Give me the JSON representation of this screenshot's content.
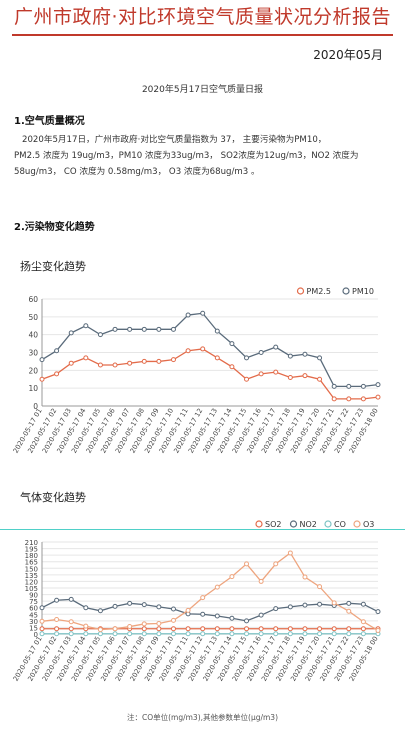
{
  "report": {
    "title": "广州市政府·对比环境空气质量状况分析报告",
    "date": "2020年05月",
    "subtitle": "2020年5月17日空气质量日报"
  },
  "section1": {
    "heading": "1.空气质量概况",
    "line1": "2020年5月17日，广州市政府·对比空气质量指数为 37， 主要污染物为PM10，",
    "line2": "PM2.5 浓度为 19ug/m3，PM10 浓度为33ug/m3， SO2浓度为12ug/m3，NO2 浓度为",
    "line3": "58ug/m3， CO 浓度为 0.58mg/m3， O3 浓度为68ug/m3 。"
  },
  "section2": {
    "heading": "2.污染物变化趋势"
  },
  "charts": {
    "dust_title": "扬尘变化趋势",
    "gas_title": "气体变化趋势",
    "footnote": "注：CO单位(mg/m3),其他参数单位(μg/m3)"
  },
  "colors": {
    "pm25": "#e36b4a",
    "pm10": "#5a6b7b",
    "so2": "#e36b4a",
    "no2": "#5a6b7b",
    "co": "#7ec3c4",
    "o3": "#eea57f"
  },
  "chart_data": [
    {
      "type": "line",
      "x": [
        "2020-05-17 01",
        "2020-05-17 02",
        "2020-05-17 03",
        "2020-05-17 04",
        "2020-05-17 05",
        "2020-05-17 06",
        "2020-05-17 07",
        "2020-05-17 08",
        "2020-05-17 09",
        "2020-05-17 10",
        "2020-05-17 11",
        "2020-05-17 12",
        "2020-05-17 13",
        "2020-05-17 14",
        "2020-05-17 15",
        "2020-05-17 16",
        "2020-05-17 17",
        "2020-05-17 18",
        "2020-05-17 19",
        "2020-05-17 20",
        "2020-05-17 21",
        "2020-05-17 22",
        "2020-05-17 23",
        "2020-05-18 00"
      ],
      "series": [
        {
          "name": "PM2.5",
          "values": [
            15,
            18,
            24,
            27,
            23,
            23,
            24,
            25,
            25,
            26,
            31,
            32,
            27,
            22,
            15,
            18,
            19,
            16,
            17,
            15,
            4,
            4,
            4,
            5
          ]
        },
        {
          "name": "PM10",
          "values": [
            26,
            31,
            41,
            45,
            40,
            43,
            43,
            43,
            43,
            43,
            51,
            52,
            42,
            35,
            27,
            30,
            33,
            28,
            29,
            27,
            11,
            11,
            11,
            12
          ]
        }
      ],
      "ylim": [
        0,
        60
      ],
      "yticks": [
        0,
        10,
        20,
        30,
        40,
        50,
        60
      ],
      "legend": "top-right"
    },
    {
      "type": "line",
      "x": [
        "2020-05-17 01",
        "2020-05-17 02",
        "2020-05-17 03",
        "2020-05-17 04",
        "2020-05-17 05",
        "2020-05-17 06",
        "2020-05-17 07",
        "2020-05-17 08",
        "2020-05-17 09",
        "2020-05-17 10",
        "2020-05-17 11",
        "2020-05-17 12",
        "2020-05-17 13",
        "2020-05-17 14",
        "2020-05-17 15",
        "2020-05-17 16",
        "2020-05-17 17",
        "2020-05-17 18",
        "2020-05-17 19",
        "2020-05-17 20",
        "2020-05-17 21",
        "2020-05-17 22",
        "2020-05-17 23",
        "2020-05-18 00"
      ],
      "series": [
        {
          "name": "SO2",
          "values": [
            12,
            12,
            12,
            12,
            12,
            12,
            12,
            12,
            12,
            12,
            12,
            12,
            12,
            12,
            12,
            12,
            12,
            12,
            12,
            12,
            12,
            12,
            12,
            12
          ]
        },
        {
          "name": "NO2",
          "values": [
            60,
            77,
            79,
            60,
            53,
            63,
            70,
            67,
            62,
            57,
            46,
            45,
            41,
            36,
            30,
            43,
            58,
            62,
            66,
            68,
            65,
            70,
            68,
            51
          ]
        },
        {
          "name": "CO",
          "values": [
            0.6,
            0.6,
            0.6,
            0.6,
            0.6,
            0.6,
            0.6,
            0.6,
            0.6,
            0.6,
            0.6,
            0.6,
            0.6,
            0.6,
            0.6,
            0.6,
            0.6,
            0.6,
            0.6,
            0.6,
            0.6,
            0.6,
            0.6,
            0.6
          ]
        },
        {
          "name": "O3",
          "values": [
            29,
            33,
            28,
            18,
            10,
            12,
            17,
            23,
            24,
            31,
            54,
            83,
            107,
            131,
            160,
            120,
            160,
            185,
            130,
            108,
            71,
            52,
            28,
            8
          ]
        }
      ],
      "ylim": [
        0,
        210
      ],
      "yticks": [
        0,
        15,
        30,
        45,
        60,
        75,
        90,
        105,
        120,
        135,
        150,
        165,
        180,
        195,
        210
      ],
      "legend": "top-right"
    }
  ]
}
